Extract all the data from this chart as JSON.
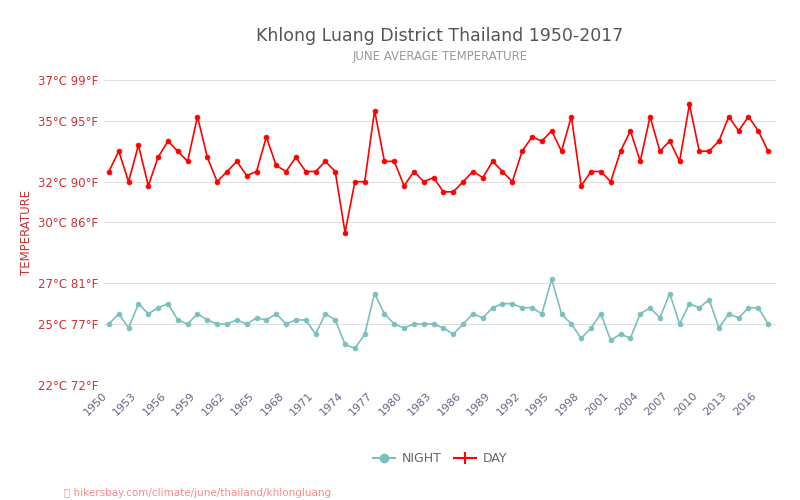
{
  "title": "Khlong Luang District Thailand 1950-2017",
  "subtitle": "JUNE AVERAGE TEMPERATURE",
  "ylabel": "TEMPERATURE",
  "footer": "hikersbay.com/climate/june/thailand/khlongluang",
  "years": [
    1950,
    1951,
    1952,
    1953,
    1954,
    1955,
    1956,
    1957,
    1958,
    1959,
    1960,
    1961,
    1962,
    1963,
    1964,
    1965,
    1966,
    1967,
    1968,
    1969,
    1970,
    1971,
    1972,
    1973,
    1974,
    1975,
    1976,
    1977,
    1978,
    1979,
    1980,
    1981,
    1982,
    1983,
    1984,
    1985,
    1986,
    1987,
    1988,
    1989,
    1990,
    1991,
    1992,
    1993,
    1994,
    1995,
    1996,
    1997,
    1998,
    1999,
    2000,
    2001,
    2002,
    2003,
    2004,
    2005,
    2006,
    2007,
    2008,
    2009,
    2010,
    2011,
    2012,
    2013,
    2014,
    2015,
    2016,
    2017
  ],
  "day_temps": [
    32.5,
    33.5,
    32.0,
    33.8,
    31.8,
    33.2,
    34.0,
    33.5,
    33.0,
    35.2,
    33.2,
    32.0,
    32.5,
    33.0,
    32.3,
    32.5,
    34.2,
    32.8,
    32.5,
    33.2,
    32.5,
    32.5,
    33.0,
    32.5,
    29.5,
    32.0,
    32.0,
    35.5,
    33.0,
    33.0,
    31.8,
    32.5,
    32.0,
    32.2,
    31.5,
    31.5,
    32.0,
    32.5,
    32.2,
    33.0,
    32.5,
    32.0,
    33.5,
    34.2,
    34.0,
    34.5,
    33.5,
    35.2,
    31.8,
    32.5,
    32.5,
    32.0,
    33.5,
    34.5,
    33.0,
    35.2,
    33.5,
    34.0,
    33.0,
    35.8,
    33.5,
    33.5,
    34.0,
    35.2,
    34.5,
    35.2,
    34.5,
    33.5
  ],
  "night_temps": [
    25.0,
    25.5,
    24.8,
    26.0,
    25.5,
    25.8,
    26.0,
    25.2,
    25.0,
    25.5,
    25.2,
    25.0,
    25.0,
    25.2,
    25.0,
    25.3,
    25.2,
    25.5,
    25.0,
    25.2,
    25.2,
    24.5,
    25.5,
    25.2,
    24.0,
    23.8,
    24.5,
    26.5,
    25.5,
    25.0,
    24.8,
    25.0,
    25.0,
    25.0,
    24.8,
    24.5,
    25.0,
    25.5,
    25.3,
    25.8,
    26.0,
    26.0,
    25.8,
    25.8,
    25.5,
    27.2,
    25.5,
    25.0,
    24.3,
    24.8,
    25.5,
    24.2,
    24.5,
    24.3,
    25.5,
    25.8,
    25.3,
    26.5,
    25.0,
    26.0,
    25.8,
    26.2,
    24.8,
    25.5,
    25.3,
    25.8,
    25.8,
    25.0
  ],
  "day_color": "#ff0000",
  "night_color": "#7bbfbf",
  "title_color": "#555555",
  "subtitle_color": "#999999",
  "ylabel_color": "#cc3333",
  "tick_color": "#cc3333",
  "grid_color": "#e0e0e0",
  "bg_color": "#ffffff",
  "ylim_min": 22,
  "ylim_max": 37,
  "yticks_c": [
    22,
    25,
    27,
    30,
    32,
    35,
    37
  ],
  "yticks_f": [
    72,
    77,
    81,
    86,
    90,
    95,
    99
  ],
  "xtick_years": [
    1950,
    1953,
    1956,
    1959,
    1962,
    1965,
    1968,
    1971,
    1974,
    1977,
    1980,
    1983,
    1986,
    1989,
    1992,
    1995,
    1998,
    2001,
    2004,
    2007,
    2010,
    2013,
    2016
  ],
  "legend_night": "NIGHT",
  "legend_day": "DAY",
  "xlim_min": 1949.5,
  "xlim_max": 2017.8
}
